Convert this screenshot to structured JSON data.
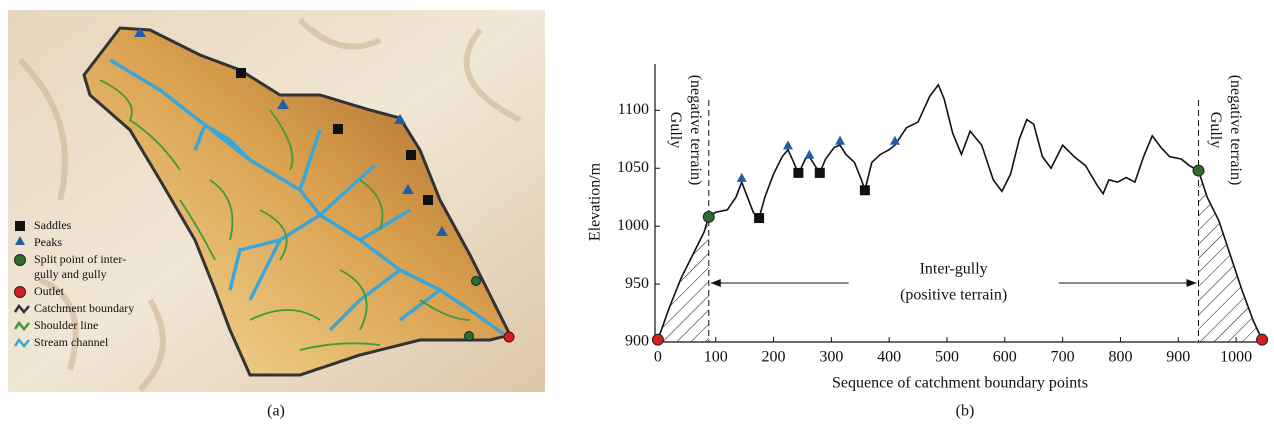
{
  "panel_a": {
    "label": "(a)",
    "legend": [
      "Catchment boundary",
      "Shoulder line",
      "Stream channel"
    ]
  },
  "chart_data": {
    "type": "line",
    "panel_label": "(b)",
    "x_label": "Sequence of catchment boundary points",
    "y_label": "Elevation/m",
    "x": [
      0,
      20,
      40,
      60,
      80,
      88,
      100,
      120,
      135,
      145,
      155,
      165,
      175,
      185,
      200,
      215,
      225,
      235,
      243,
      255,
      262,
      272,
      280,
      290,
      305,
      315,
      325,
      340,
      352,
      358,
      370,
      385,
      400,
      410,
      430,
      450,
      470,
      485,
      495,
      510,
      525,
      540,
      560,
      580,
      595,
      610,
      625,
      638,
      650,
      665,
      680,
      700,
      720,
      740,
      760,
      770,
      780,
      795,
      810,
      825,
      840,
      855,
      870,
      885,
      905,
      920,
      935,
      950,
      970,
      990,
      1010,
      1030,
      1045
    ],
    "values": [
      902,
      930,
      955,
      975,
      995,
      1008,
      1012,
      1014,
      1025,
      1038,
      1025,
      1012,
      1007,
      1025,
      1045,
      1060,
      1066,
      1055,
      1045,
      1058,
      1060,
      1052,
      1046,
      1058,
      1068,
      1070,
      1062,
      1055,
      1040,
      1031,
      1055,
      1062,
      1066,
      1070,
      1085,
      1090,
      1112,
      1122,
      1110,
      1080,
      1062,
      1082,
      1070,
      1040,
      1030,
      1045,
      1075,
      1092,
      1088,
      1060,
      1050,
      1070,
      1060,
      1052,
      1035,
      1028,
      1040,
      1038,
      1042,
      1038,
      1060,
      1078,
      1068,
      1060,
      1058,
      1052,
      1048,
      1025,
      1005,
      975,
      945,
      918,
      902
    ],
    "color": "#111111",
    "markers": [
      {
        "name": "Saddles",
        "shape": "square",
        "color": "#111111",
        "x": [
          175,
          243,
          280,
          358
        ],
        "values": [
          1007,
          1046,
          1046,
          1031
        ]
      },
      {
        "name": "Peaks",
        "shape": "triangle",
        "color": "#1f5fa8",
        "x": [
          145,
          225,
          262,
          315,
          410
        ],
        "values": [
          1040,
          1068,
          1060,
          1072,
          1072
        ]
      },
      {
        "name": "Split point of inter-gully and gully",
        "shape": "circle",
        "color": "#2e6b2e",
        "x": [
          88,
          935
        ],
        "values": [
          1008,
          1048
        ]
      },
      {
        "name": "Outlet",
        "shape": "circle",
        "color": "#d42020",
        "x": [
          0,
          1045
        ],
        "values": [
          902,
          902
        ]
      }
    ],
    "annotations": {
      "gully_left": [
        "Gully",
        "(negative terrain)"
      ],
      "gully_right": [
        "Gully",
        "(negative terrain)"
      ],
      "inter_gully": [
        "Inter-gully",
        "(positive terrain)"
      ]
    },
    "xlim": [
      -5,
      1050
    ],
    "ylim": [
      900,
      1140
    ],
    "xticks": [
      0,
      100,
      200,
      300,
      400,
      500,
      600,
      700,
      800,
      900,
      1000
    ],
    "yticks": [
      900,
      950,
      1000,
      1050,
      1100
    ]
  }
}
